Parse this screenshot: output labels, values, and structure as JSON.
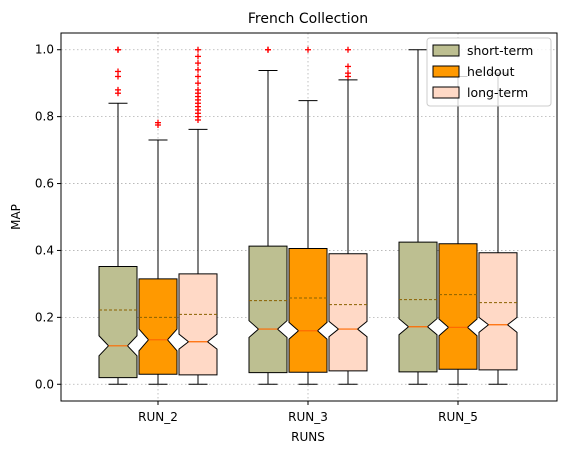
{
  "chart_data": {
    "type": "box",
    "title": "French Collection",
    "xlabel": "RUNS",
    "ylabel": "MAP",
    "categories": [
      "RUN_2",
      "RUN_3",
      "RUN_5"
    ],
    "ylim": [
      -0.05,
      1.05
    ],
    "yticks": [
      "0.0",
      "0.2",
      "0.4",
      "0.6",
      "0.8",
      "1.0"
    ],
    "grid": true,
    "legend_position": "top-right",
    "notched": true,
    "mean_line": "dashed",
    "series": [
      {
        "name": "short-term",
        "color": "#bdbf91",
        "boxes": [
          {
            "whisker_low": 0.0,
            "q1": 0.02,
            "median": 0.115,
            "q3": 0.352,
            "whisker_high": 0.84,
            "mean": 0.222,
            "notch": [
              0.085,
              0.145
            ],
            "outliers": [
              0.87,
              0.88,
              0.92,
              0.935,
              1.0,
              1.0
            ]
          },
          {
            "whisker_low": 0.0,
            "q1": 0.035,
            "median": 0.165,
            "q3": 0.413,
            "whisker_high": 0.938,
            "mean": 0.25,
            "notch": [
              0.14,
              0.19
            ],
            "outliers": [
              1.0,
              1.0
            ]
          },
          {
            "whisker_low": 0.0,
            "q1": 0.037,
            "median": 0.172,
            "q3": 0.425,
            "whisker_high": 1.0,
            "mean": 0.253,
            "notch": [
              0.148,
              0.196
            ],
            "outliers": []
          }
        ]
      },
      {
        "name": "heldout",
        "color": "#ff9900",
        "boxes": [
          {
            "whisker_low": 0.0,
            "q1": 0.03,
            "median": 0.133,
            "q3": 0.315,
            "whisker_high": 0.73,
            "mean": 0.2,
            "notch": [
              0.1,
              0.165
            ],
            "outliers": [
              0.775,
              0.782
            ]
          },
          {
            "whisker_low": 0.0,
            "q1": 0.036,
            "median": 0.16,
            "q3": 0.406,
            "whisker_high": 0.848,
            "mean": 0.258,
            "notch": [
              0.135,
              0.185
            ],
            "outliers": [
              1.0
            ]
          },
          {
            "whisker_low": 0.0,
            "q1": 0.045,
            "median": 0.17,
            "q3": 0.42,
            "whisker_high": 0.92,
            "mean": 0.268,
            "notch": [
              0.145,
              0.195
            ],
            "outliers": []
          }
        ]
      },
      {
        "name": "long-term",
        "color": "#ffd9c6",
        "boxes": [
          {
            "whisker_low": 0.0,
            "q1": 0.028,
            "median": 0.127,
            "q3": 0.33,
            "whisker_high": 0.762,
            "mean": 0.209,
            "notch": [
              0.105,
              0.15
            ],
            "outliers": [
              0.79,
              0.8,
              0.81,
              0.82,
              0.83,
              0.84,
              0.85,
              0.86,
              0.87,
              0.88,
              0.9,
              0.92,
              0.94,
              0.96,
              0.98,
              1.0
            ]
          },
          {
            "whisker_low": 0.0,
            "q1": 0.04,
            "median": 0.165,
            "q3": 0.39,
            "whisker_high": 0.91,
            "mean": 0.238,
            "notch": [
              0.142,
              0.188
            ],
            "outliers": [
              0.92,
              0.93,
              0.95,
              1.0
            ]
          },
          {
            "whisker_low": 0.0,
            "q1": 0.043,
            "median": 0.178,
            "q3": 0.393,
            "whisker_high": 0.93,
            "mean": 0.244,
            "notch": [
              0.155,
              0.2
            ],
            "outliers": []
          }
        ]
      }
    ]
  }
}
